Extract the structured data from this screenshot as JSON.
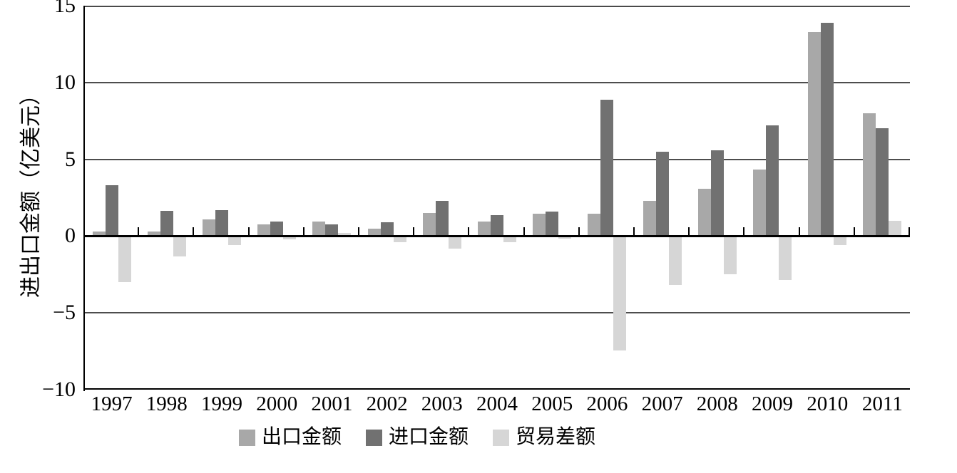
{
  "chart": {
    "y_axis_title": "进出口金额（亿美元）",
    "y_tick_labels": [
      "15",
      "10",
      "5",
      "0",
      "−5",
      "−10"
    ],
    "y_tick_values": [
      15,
      10,
      5,
      0,
      -5,
      -10
    ]
  },
  "legend": {
    "items": [
      {
        "label": "出口金额",
        "color": "#a8a8a8"
      },
      {
        "label": "进口金额",
        "color": "#717171"
      },
      {
        "label": "贸易差额",
        "color": "#d6d6d6"
      }
    ]
  },
  "chart_data": {
    "type": "bar",
    "title": "",
    "xlabel": "",
    "ylabel": "进出口金额（亿美元）",
    "ylim": [
      -10,
      15
    ],
    "y_tick_step": 5,
    "grid": true,
    "legend_position": "bottom",
    "categories": [
      "1997",
      "1998",
      "1999",
      "2000",
      "2001",
      "2002",
      "2003",
      "2004",
      "2005",
      "2006",
      "2007",
      "2008",
      "2009",
      "2010",
      "2011"
    ],
    "series": [
      {
        "name": "出口金额",
        "color": "#a8a8a8",
        "values": [
          0.3,
          0.3,
          1.1,
          0.75,
          0.95,
          0.5,
          1.5,
          0.95,
          1.45,
          1.45,
          2.3,
          3.1,
          4.35,
          13.3,
          8.0
        ]
      },
      {
        "name": "进口金额",
        "color": "#717171",
        "values": [
          3.3,
          1.65,
          1.7,
          0.95,
          0.75,
          0.9,
          2.3,
          1.35,
          1.6,
          8.9,
          5.5,
          5.6,
          7.2,
          13.9,
          7.0
        ]
      },
      {
        "name": "贸易差额",
        "color": "#d6d6d6",
        "values": [
          -3.0,
          -1.35,
          -0.6,
          -0.2,
          0.2,
          -0.4,
          -0.8,
          -0.4,
          -0.15,
          -7.45,
          -3.2,
          -2.5,
          -2.85,
          -0.6,
          1.0
        ]
      }
    ]
  }
}
